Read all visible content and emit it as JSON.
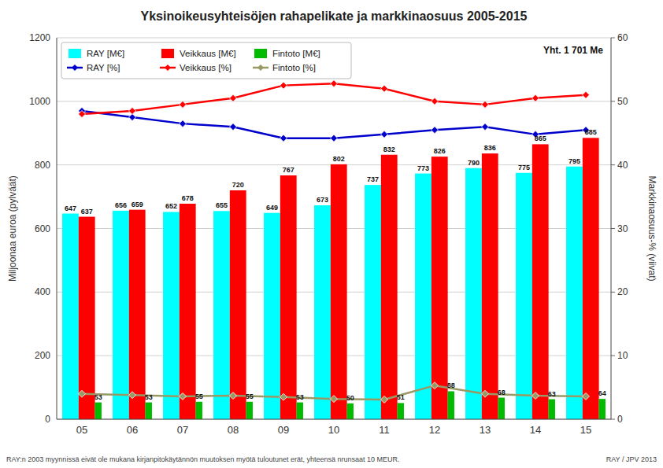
{
  "chart_data": {
    "type": "bar",
    "title": "Yksinoikeusyhteisöjen rahapelikate ja markkinaosuus 2005-2015",
    "categories": [
      "05",
      "06",
      "07",
      "08",
      "09",
      "10",
      "11",
      "12",
      "13",
      "14",
      "15"
    ],
    "series": [
      {
        "name": "RAY [M€]",
        "type": "bar",
        "color": "#00FFFF",
        "data_labels": true,
        "values": [
          647,
          656,
          652,
          655,
          649,
          673,
          737,
          773,
          790,
          775,
          795
        ]
      },
      {
        "name": "Veikkaus [M€]",
        "type": "bar",
        "color": "#FF0000",
        "data_labels": true,
        "values": [
          637,
          659,
          678,
          720,
          767,
          802,
          832,
          826,
          836,
          865,
          885
        ]
      },
      {
        "name": "Fintoto [M€]",
        "type": "bar",
        "color": "#00BB00",
        "data_labels": true,
        "values": [
          53,
          53,
          55,
          55,
          53,
          50,
          51,
          88,
          68,
          63,
          64
        ]
      },
      {
        "name": "RAY [%]",
        "type": "line",
        "axis": "y2",
        "color": "#0000CC",
        "marker": "diamond",
        "values": [
          48.5,
          47.5,
          46.5,
          46.0,
          44.2,
          44.2,
          44.8,
          45.5,
          46.0,
          44.8,
          45.5
        ]
      },
      {
        "name": "Veikkaus [%]",
        "type": "line",
        "axis": "y2",
        "color": "#FF0000",
        "marker": "diamond",
        "values": [
          48.0,
          48.5,
          49.5,
          50.5,
          52.5,
          52.8,
          52.0,
          50.0,
          49.5,
          50.5,
          51.0
        ]
      },
      {
        "name": "Fintoto [%]",
        "type": "line",
        "axis": "y2",
        "color": "#999966",
        "marker": "diamond",
        "values": [
          4.0,
          3.8,
          3.6,
          3.7,
          3.5,
          3.2,
          3.1,
          5.3,
          4.0,
          3.7,
          3.6
        ]
      }
    ],
    "ylabel": "Miljoonaa euroa (pylväät)",
    "y2label": "Markkinaosuus-% (viivat)",
    "ylim": [
      0,
      1200
    ],
    "yticks": [
      0,
      200,
      400,
      600,
      800,
      1000,
      1200
    ],
    "y2lim": [
      0,
      60
    ],
    "y2ticks": [
      0,
      10,
      20,
      30,
      40,
      50,
      60
    ],
    "grid": true,
    "legend": "upper left",
    "annotation": "Yht. 1 701 Me",
    "footnote": "RAY:n 2003 myynnissä eivät ole mukana kirjanpitokäytännön muutoksen myötä tuloutunet erät, yhteensä nrunsaat 10 MEUR.",
    "footnote_right": "RAY / JPV 2013"
  }
}
